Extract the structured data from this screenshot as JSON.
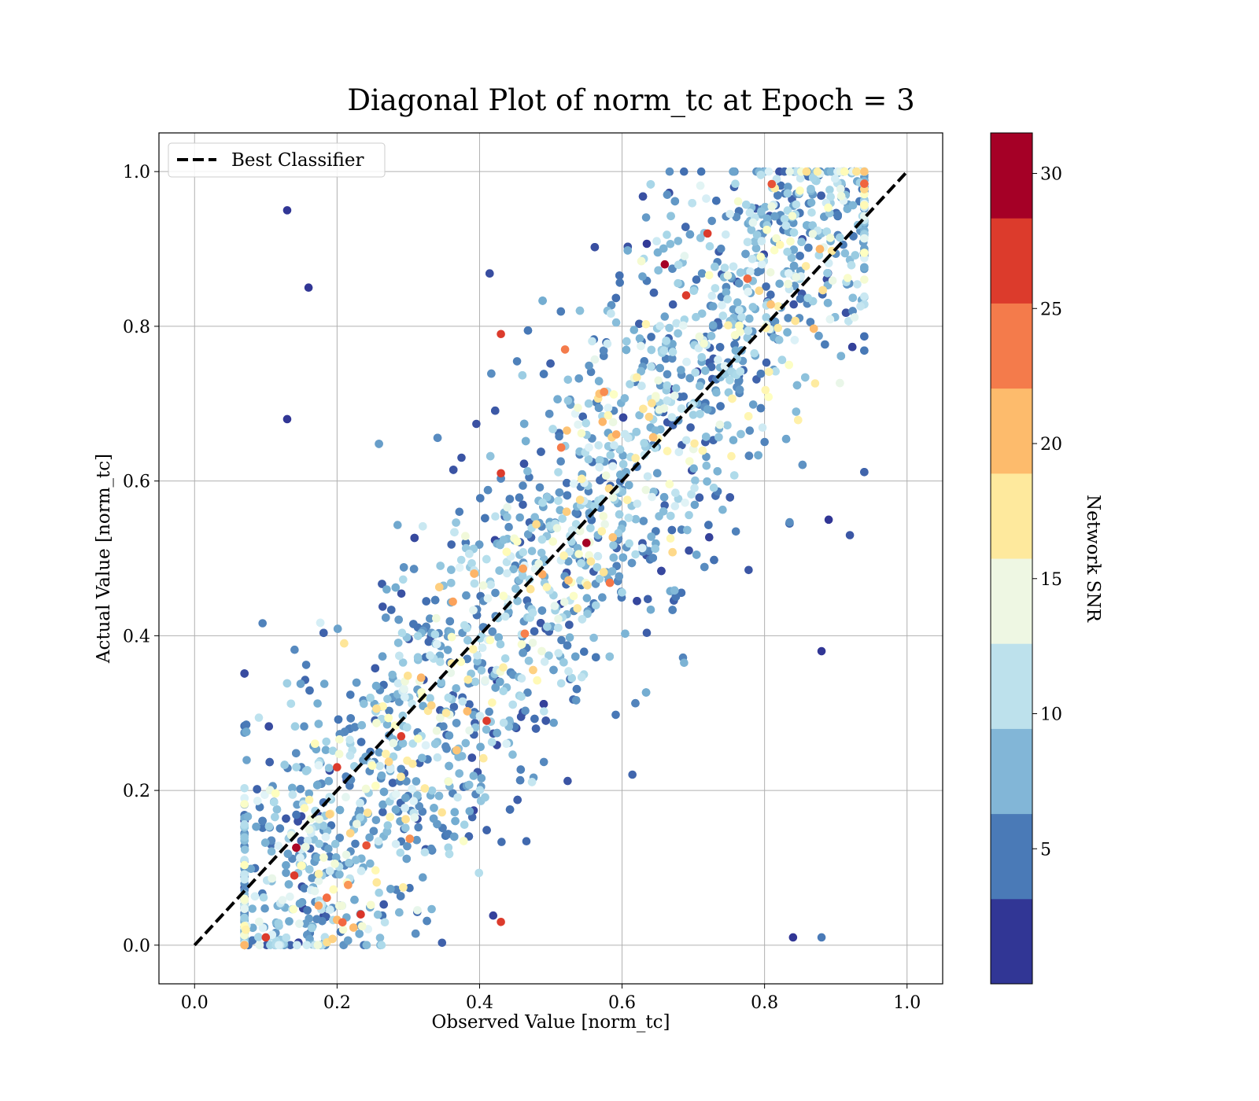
{
  "chart_data": {
    "type": "scatter",
    "title": "Diagonal Plot of norm_tc at Epoch = 3",
    "xlabel": "Observed Value [norm_tc]",
    "ylabel": "Actual Value [norm_tc]",
    "xlim": [
      -0.05,
      1.05
    ],
    "ylim": [
      -0.05,
      1.05
    ],
    "xticks": [
      "0.0",
      "0.2",
      "0.4",
      "0.6",
      "0.8",
      "1.0"
    ],
    "yticks": [
      "0.0",
      "0.2",
      "0.4",
      "0.6",
      "0.8",
      "1.0"
    ],
    "grid": true,
    "legend": {
      "placement": "upper-left",
      "entries": [
        {
          "label": "Best Classifier",
          "style": "black dashed line"
        }
      ]
    },
    "reference_line": {
      "name": "Best Classifier",
      "x": [
        0.0,
        1.0
      ],
      "y": [
        0.0,
        1.0
      ],
      "color": "#000000",
      "dash": true
    },
    "colorbar": {
      "label": "Network SNR",
      "range": [
        0,
        31.5
      ],
      "ticks": [
        "5",
        "10",
        "15",
        "20",
        "25",
        "30"
      ],
      "tick_values": [
        5,
        10,
        15,
        20,
        25,
        30
      ],
      "levels": [
        0,
        3.15,
        6.3,
        9.45,
        12.6,
        15.75,
        18.9,
        22.05,
        25.2,
        28.35,
        31.5
      ],
      "colors": [
        "#313695",
        "#4575b4",
        "#74add1",
        "#abd9e9",
        "#e0f3f8",
        "#ffffbf",
        "#fee090",
        "#fdae61",
        "#f46d43",
        "#d73027",
        "#a50026"
      ],
      "band_colors": [
        "#313695",
        "#4a7ab7",
        "#82b6d7",
        "#bde1ec",
        "#eef7e3",
        "#fee99d",
        "#fdbb6c",
        "#f47b4b",
        "#dc3b2c",
        "#a50026"
      ]
    },
    "series": [
      {
        "color_by": "Network SNR",
        "description_of_distribution": "dense point cloud along y = x; low SNR (blue) spread widely, high SNR (red) near the diagonal",
        "points": [
          {
            "x": 0.13,
            "y": 0.95,
            "snr": 1
          },
          {
            "x": 0.16,
            "y": 0.85,
            "snr": 2
          },
          {
            "x": 0.13,
            "y": 0.68,
            "snr": 1
          },
          {
            "x": 0.43,
            "y": 0.79,
            "snr": 28
          },
          {
            "x": 0.66,
            "y": 0.88,
            "snr": 29
          },
          {
            "x": 0.55,
            "y": 0.52,
            "snr": 30
          },
          {
            "x": 0.43,
            "y": 0.61,
            "snr": 28
          },
          {
            "x": 0.88,
            "y": 0.38,
            "snr": 1
          },
          {
            "x": 0.89,
            "y": 0.55,
            "snr": 1
          },
          {
            "x": 0.88,
            "y": 0.01,
            "snr": 4
          },
          {
            "x": 0.43,
            "y": 0.03,
            "snr": 26
          },
          {
            "x": 0.1,
            "y": 0.01,
            "snr": 27
          },
          {
            "x": 0.14,
            "y": 0.09,
            "snr": 26
          },
          {
            "x": 0.2,
            "y": 0.23,
            "snr": 26
          },
          {
            "x": 0.29,
            "y": 0.27,
            "snr": 27
          },
          {
            "x": 0.41,
            "y": 0.29,
            "snr": 26
          },
          {
            "x": 0.69,
            "y": 0.84,
            "snr": 26
          },
          {
            "x": 0.72,
            "y": 0.92,
            "snr": 27
          },
          {
            "x": 0.52,
            "y": 0.77,
            "snr": 25
          },
          {
            "x": 0.84,
            "y": 0.01,
            "snr": 1
          }
        ]
      }
    ]
  }
}
